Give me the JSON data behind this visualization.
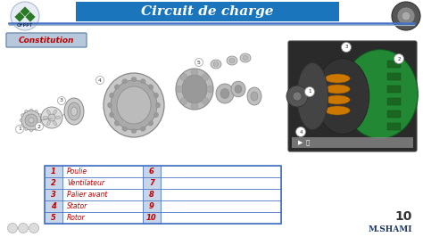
{
  "title": "Circuit de charge",
  "title_bg_color": "#1B75BC",
  "title_text_color": "#FFFFFF",
  "bg_color": "#FFFFFF",
  "constitution_label": "Constitution",
  "constitution_bg": "#B8C8DC",
  "constitution_border": "#7090B0",
  "table_rows": [
    {
      "num": "1",
      "label": "Poulie",
      "num2": "6",
      "label2": ""
    },
    {
      "num": "2",
      "label": "Ventilateur",
      "num2": "7",
      "label2": ""
    },
    {
      "num": "3",
      "label": "Palier avant",
      "num2": "8",
      "label2": ""
    },
    {
      "num": "4",
      "label": "Stator",
      "num2": "9",
      "label2": ""
    },
    {
      "num": "5",
      "label": "Rotor",
      "num2": "10",
      "label2": ""
    }
  ],
  "table_num_col_color": "#C8D4E8",
  "table_border_color": "#4472C4",
  "table_text_color": "#C00000",
  "table_num_text_color": "#C00000",
  "page_number": "10",
  "author": "M.SHAMI",
  "header_line_color1": "#4472C4",
  "header_line_color2": "#A0B4C8",
  "slide_bg": "#E8EDF2"
}
